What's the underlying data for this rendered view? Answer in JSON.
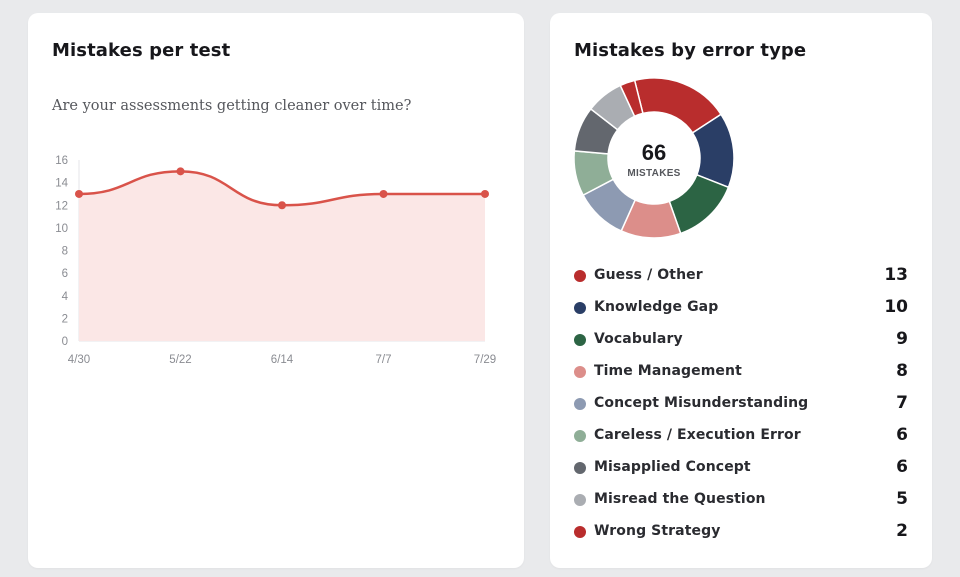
{
  "left_card": {
    "title": "Mistakes per test",
    "subtitle": "Are your assessments getting cleaner over time?"
  },
  "right_card": {
    "title": "Mistakes by error type",
    "donut_total": "66",
    "donut_total_label": "MISTAKES"
  },
  "chart_data": [
    {
      "type": "area",
      "title": "Mistakes per test",
      "subtitle": "Are your assessments getting cleaner over time?",
      "categories": [
        "4/30",
        "5/22",
        "6/14",
        "7/7",
        "7/29"
      ],
      "values": [
        13,
        15,
        12,
        13,
        13
      ],
      "ylim": [
        0,
        16
      ],
      "yticks": [
        "0",
        "2",
        "4",
        "6",
        "8",
        "10",
        "12",
        "14",
        "16"
      ],
      "xlabel": "",
      "ylabel": "",
      "grid": false,
      "line_color": "#d9534a",
      "fill_color": "#fbe7e6"
    },
    {
      "type": "pie",
      "style": "donut",
      "title": "Mistakes by error type",
      "center_value": "66",
      "center_label": "MISTAKES",
      "legend_placement": "bottom",
      "slices": [
        {
          "label": "Guess / Other",
          "value": 13,
          "color": "#b92d2d"
        },
        {
          "label": "Knowledge Gap",
          "value": 10,
          "color": "#2a3e66"
        },
        {
          "label": "Vocabulary",
          "value": 9,
          "color": "#2c6444"
        },
        {
          "label": "Time Management",
          "value": 8,
          "color": "#dc8e8a"
        },
        {
          "label": "Concept Misunderstanding",
          "value": 7,
          "color": "#8d9ab2"
        },
        {
          "label": "Careless / Execution Error",
          "value": 6,
          "color": "#8fae97"
        },
        {
          "label": "Misapplied Concept",
          "value": 6,
          "color": "#63676e"
        },
        {
          "label": "Misread the Question",
          "value": 5,
          "color": "#aaadb2"
        },
        {
          "label": "Wrong Strategy",
          "value": 2,
          "color": "#b92d2d"
        }
      ]
    }
  ]
}
